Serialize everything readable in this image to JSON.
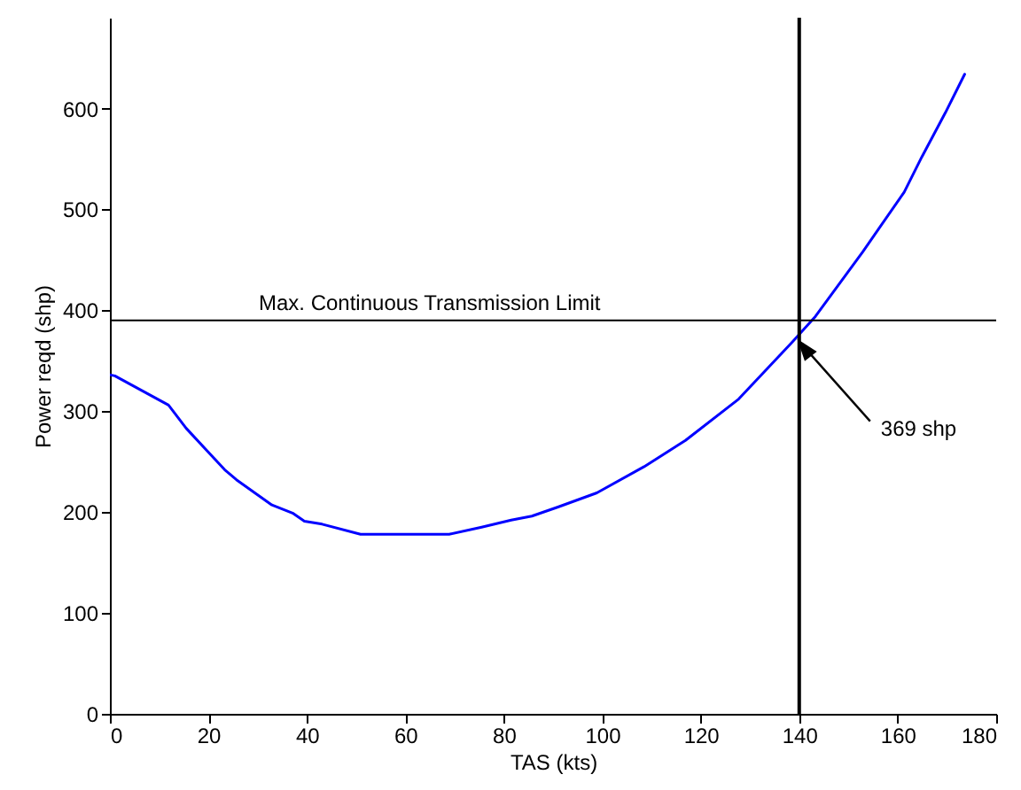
{
  "chart_data": {
    "type": "line",
    "xlabel": "TAS (kts)",
    "ylabel": "Power reqd (shp)",
    "x": [
      0,
      1,
      11.9,
      15.5,
      23.3,
      25.7,
      32.9,
      37.1,
      39.5,
      43.1,
      50.9,
      60,
      68.9,
      75.5,
      81.5,
      85.7,
      91,
      98.9,
      108.5,
      116.9,
      127.7,
      138.5,
      143.3,
      152.9,
      161.3,
      164.9,
      169.7,
      173.6
    ],
    "series": [
      {
        "color": "#0000ff",
        "values": [
          336,
          335,
          306,
          283,
          242,
          232,
          207,
          199,
          191,
          188,
          178,
          178,
          178,
          185,
          192,
          196,
          205,
          219,
          245,
          271,
          312,
          368,
          394,
          458,
          517,
          552,
          596,
          634
        ]
      }
    ],
    "xlim": [
      0,
      180
    ],
    "xticks": [
      0,
      20,
      40,
      60,
      80,
      100,
      120,
      140,
      160,
      180
    ],
    "ylim": [
      0,
      690
    ],
    "yticks": [
      0,
      100,
      200,
      300,
      400,
      500,
      600
    ],
    "ref_lines": [
      {
        "axis": "y",
        "value": 390,
        "label": "Max. Continuous Transmission Limit",
        "color": "#000000"
      },
      {
        "axis": "x",
        "value": 140,
        "color": "#000000"
      }
    ],
    "annotations": [
      {
        "text": "369 shp",
        "x": 140,
        "y": 369
      }
    ],
    "grid": false,
    "marker": "none",
    "line_style": "solid"
  }
}
